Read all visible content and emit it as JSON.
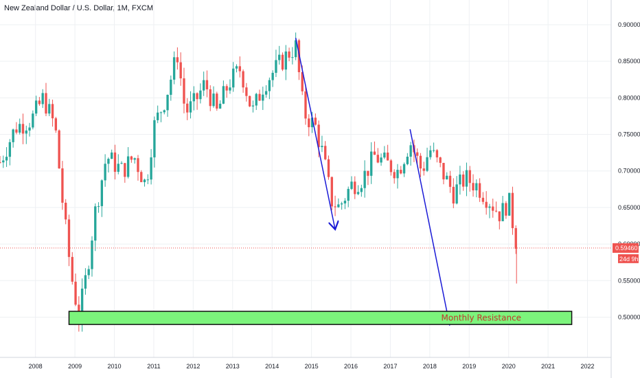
{
  "header": {
    "title": "New Zealand Dollar / U.S. Dollar, 1M, FXCM"
  },
  "price_label": {
    "value": "0.59460",
    "countdown": "24d 9h"
  },
  "zone_label": "Monthly Resistance",
  "colors": {
    "up": "#26a69a",
    "down": "#ef5350",
    "zone_fill": "#7cf47c",
    "arrow": "#1a1ad6",
    "price_line": "#ef5350"
  },
  "chart_data": {
    "type": "candlestick",
    "title": "New Zealand Dollar / U.S. Dollar, 1M, FXCM",
    "x_ticks": [
      "2008",
      "2009",
      "2010",
      "2011",
      "2012",
      "2013",
      "2014",
      "2015",
      "2016",
      "2017",
      "2018",
      "2019",
      "2020",
      "2021",
      "2022"
    ],
    "y_ticks": [
      "0.90000",
      "0.85000",
      "0.80000",
      "0.75000",
      "0.70000",
      "0.65000",
      "0.60000",
      "0.55000",
      "0.50000"
    ],
    "ylim": [
      0.445,
      0.915
    ],
    "xlim": [
      2007.1,
      2022.6
    ],
    "last_price": 0.5946,
    "grid": true,
    "series_close": [
      [
        2007.0,
        0.7
      ],
      [
        2007.5,
        0.76
      ],
      [
        2007.9,
        0.77
      ],
      [
        2008.2,
        0.8
      ],
      [
        2008.5,
        0.76
      ],
      [
        2008.7,
        0.65
      ],
      [
        2008.9,
        0.56
      ],
      [
        2009.1,
        0.5
      ],
      [
        2009.3,
        0.56
      ],
      [
        2009.5,
        0.64
      ],
      [
        2009.8,
        0.72
      ],
      [
        2010.2,
        0.7
      ],
      [
        2010.5,
        0.72
      ],
      [
        2010.8,
        0.68
      ],
      [
        2011.0,
        0.76
      ],
      [
        2011.3,
        0.8
      ],
      [
        2011.6,
        0.86
      ],
      [
        2011.8,
        0.78
      ],
      [
        2012.0,
        0.79
      ],
      [
        2012.3,
        0.82
      ],
      [
        2012.6,
        0.78
      ],
      [
        2012.9,
        0.82
      ],
      [
        2013.2,
        0.84
      ],
      [
        2013.5,
        0.78
      ],
      [
        2013.8,
        0.82
      ],
      [
        2014.1,
        0.84
      ],
      [
        2014.4,
        0.86
      ],
      [
        2014.6,
        0.87
      ],
      [
        2014.8,
        0.78
      ],
      [
        2015.1,
        0.76
      ],
      [
        2015.3,
        0.72
      ],
      [
        2015.5,
        0.66
      ],
      [
        2015.7,
        0.65
      ],
      [
        2016.0,
        0.68
      ],
      [
        2016.3,
        0.69
      ],
      [
        2016.6,
        0.72
      ],
      [
        2016.9,
        0.71
      ],
      [
        2017.2,
        0.7
      ],
      [
        2017.5,
        0.74
      ],
      [
        2017.8,
        0.7
      ],
      [
        2018.0,
        0.73
      ],
      [
        2018.3,
        0.7
      ],
      [
        2018.6,
        0.67
      ],
      [
        2018.9,
        0.69
      ],
      [
        2019.2,
        0.68
      ],
      [
        2019.5,
        0.66
      ],
      [
        2019.8,
        0.64
      ],
      [
        2020.0,
        0.66
      ],
      [
        2020.2,
        0.6
      ]
    ],
    "drawings": [
      {
        "type": "arrow",
        "from": [
          2014.6,
          0.882
        ],
        "to": [
          2015.6,
          0.62
        ]
      },
      {
        "type": "arrow",
        "from": [
          2017.5,
          0.757
        ],
        "to": [
          2018.5,
          0.49
        ]
      },
      {
        "type": "zone",
        "x": [
          2008.85,
          2021.6
        ],
        "y": [
          0.49,
          0.508
        ],
        "label": "Monthly Resistance"
      }
    ]
  }
}
